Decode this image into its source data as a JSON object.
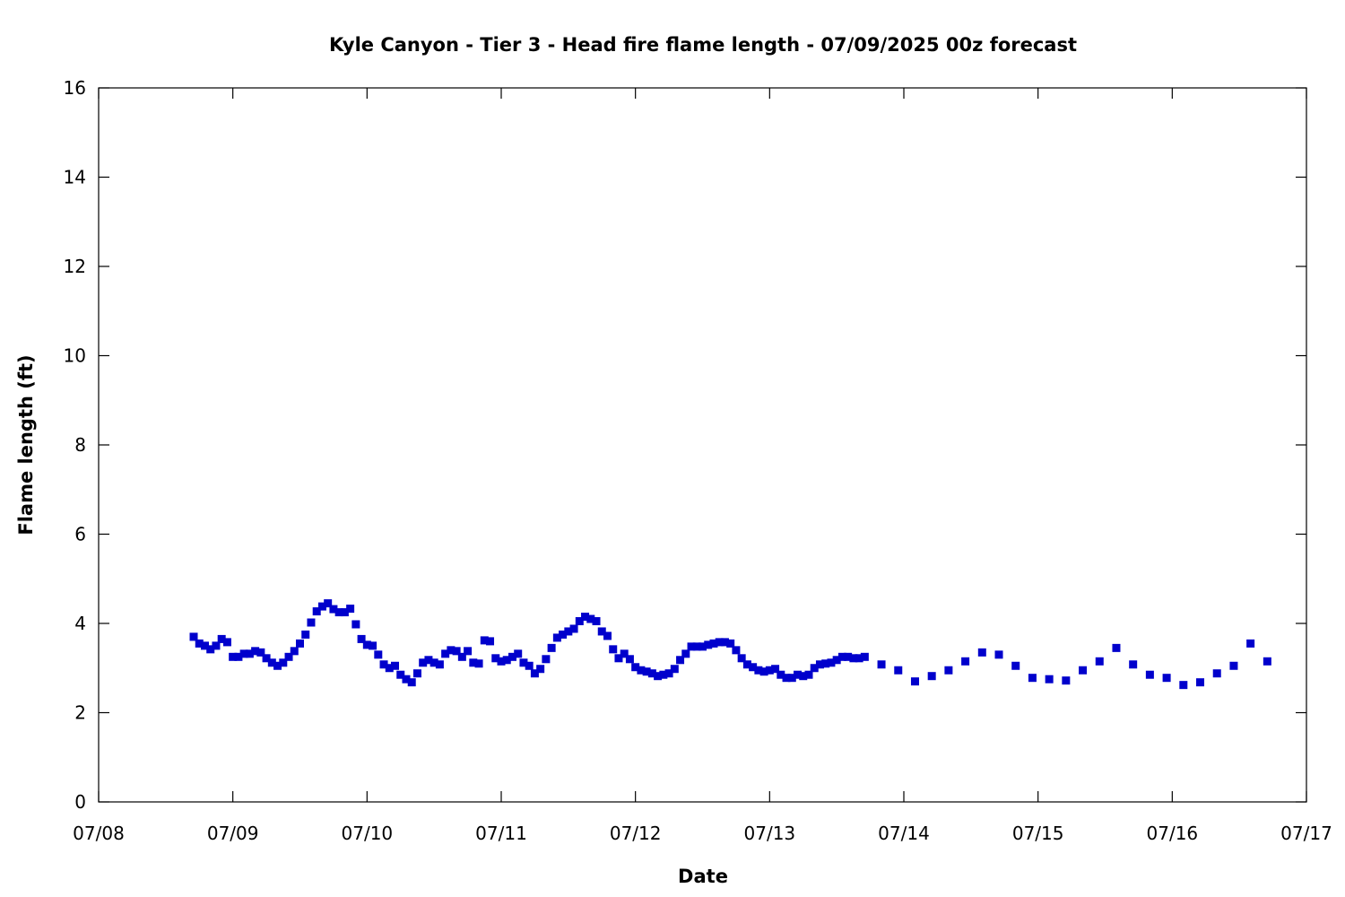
{
  "chart_data": {
    "type": "scatter",
    "title": "Kyle Canyon - Tier 3 - Head fire flame length - 07/09/2025 00z forecast",
    "xlabel": "Date",
    "ylabel": "Flame length (ft)",
    "x_tick_labels": [
      "07/08",
      "07/09",
      "07/10",
      "07/11",
      "07/12",
      "07/13",
      "07/14",
      "07/15",
      "07/16",
      "07/17"
    ],
    "y_tick_labels": [
      "0",
      "2",
      "4",
      "6",
      "8",
      "10",
      "12",
      "14",
      "16"
    ],
    "xlim": [
      "07/08",
      "07/17"
    ],
    "ylim": [
      0,
      16
    ],
    "grid": false,
    "marker_color": "#0000cc",
    "series": [
      {
        "x": [
          "07/08 17:00",
          "07/08 18:00",
          "07/08 19:00",
          "07/08 20:00",
          "07/08 21:00",
          "07/08 22:00",
          "07/08 23:00",
          "07/09 00:00",
          "07/09 01:00",
          "07/09 02:00",
          "07/09 03:00",
          "07/09 04:00",
          "07/09 05:00",
          "07/09 06:00",
          "07/09 07:00",
          "07/09 08:00",
          "07/09 09:00",
          "07/09 10:00",
          "07/09 11:00",
          "07/09 12:00",
          "07/09 13:00",
          "07/09 14:00",
          "07/09 15:00",
          "07/09 16:00",
          "07/09 17:00",
          "07/09 18:00",
          "07/09 19:00",
          "07/09 20:00",
          "07/09 21:00",
          "07/09 22:00",
          "07/09 23:00",
          "07/10 00:00",
          "07/10 01:00",
          "07/10 02:00",
          "07/10 03:00",
          "07/10 04:00",
          "07/10 05:00",
          "07/10 06:00",
          "07/10 07:00",
          "07/10 08:00",
          "07/10 09:00",
          "07/10 10:00",
          "07/10 11:00",
          "07/10 12:00",
          "07/10 13:00",
          "07/10 14:00",
          "07/10 15:00",
          "07/10 16:00",
          "07/10 17:00",
          "07/10 18:00",
          "07/10 19:00",
          "07/10 20:00",
          "07/10 21:00",
          "07/10 22:00",
          "07/10 23:00",
          "07/11 00:00",
          "07/11 01:00",
          "07/11 02:00",
          "07/11 03:00",
          "07/11 04:00",
          "07/11 05:00",
          "07/11 06:00",
          "07/11 07:00",
          "07/11 08:00",
          "07/11 09:00",
          "07/11 10:00",
          "07/11 11:00",
          "07/11 12:00",
          "07/11 13:00",
          "07/11 14:00",
          "07/11 15:00",
          "07/11 16:00",
          "07/11 17:00",
          "07/11 18:00",
          "07/11 19:00",
          "07/11 20:00",
          "07/11 21:00",
          "07/11 22:00",
          "07/11 23:00",
          "07/12 00:00",
          "07/12 01:00",
          "07/12 02:00",
          "07/12 03:00",
          "07/12 04:00",
          "07/12 05:00",
          "07/12 06:00",
          "07/12 07:00",
          "07/12 08:00",
          "07/12 09:00",
          "07/12 10:00",
          "07/12 11:00",
          "07/12 12:00",
          "07/12 13:00",
          "07/12 14:00",
          "07/12 15:00",
          "07/12 16:00",
          "07/12 17:00",
          "07/12 18:00",
          "07/12 19:00",
          "07/12 20:00",
          "07/12 21:00",
          "07/12 22:00",
          "07/12 23:00",
          "07/13 00:00",
          "07/13 01:00",
          "07/13 02:00",
          "07/13 03:00",
          "07/13 04:00",
          "07/13 05:00",
          "07/13 06:00",
          "07/13 07:00",
          "07/13 08:00",
          "07/13 09:00",
          "07/13 10:00",
          "07/13 11:00",
          "07/13 12:00",
          "07/13 13:00",
          "07/13 14:00",
          "07/13 15:00",
          "07/13 16:00",
          "07/13 17:00",
          "07/13 20:00",
          "07/13 23:00",
          "07/14 02:00",
          "07/14 05:00",
          "07/14 08:00",
          "07/14 11:00",
          "07/14 14:00",
          "07/14 17:00",
          "07/14 20:00",
          "07/14 23:00",
          "07/15 02:00",
          "07/15 05:00",
          "07/15 08:00",
          "07/15 11:00",
          "07/15 14:00",
          "07/15 17:00",
          "07/15 20:00",
          "07/15 23:00",
          "07/16 02:00",
          "07/16 05:00",
          "07/16 08:00",
          "07/16 11:00",
          "07/16 14:00",
          "07/16 17:00"
        ],
        "y": [
          3.7,
          3.55,
          3.5,
          3.42,
          3.5,
          3.65,
          3.58,
          3.25,
          3.25,
          3.32,
          3.32,
          3.38,
          3.35,
          3.22,
          3.12,
          3.05,
          3.12,
          3.25,
          3.38,
          3.55,
          3.75,
          4.02,
          4.27,
          4.38,
          4.45,
          4.32,
          4.25,
          4.25,
          4.33,
          3.98,
          3.65,
          3.52,
          3.5,
          3.3,
          3.08,
          3.0,
          3.05,
          2.85,
          2.75,
          2.68,
          2.88,
          3.12,
          3.18,
          3.12,
          3.08,
          3.32,
          3.4,
          3.38,
          3.25,
          3.38,
          3.12,
          3.1,
          3.62,
          3.6,
          3.22,
          3.15,
          3.18,
          3.25,
          3.32,
          3.12,
          3.05,
          2.88,
          2.98,
          3.2,
          3.45,
          3.68,
          3.75,
          3.82,
          3.88,
          4.05,
          4.15,
          4.1,
          4.05,
          3.82,
          3.72,
          3.42,
          3.22,
          3.32,
          3.2,
          3.02,
          2.95,
          2.92,
          2.88,
          2.82,
          2.85,
          2.88,
          2.98,
          3.18,
          3.32,
          3.48,
          3.48,
          3.48,
          3.52,
          3.55,
          3.58,
          3.58,
          3.55,
          3.4,
          3.22,
          3.08,
          3.02,
          2.95,
          2.92,
          2.95,
          2.98,
          2.85,
          2.78,
          2.78,
          2.85,
          2.82,
          2.85,
          3.0,
          3.08,
          3.1,
          3.12,
          3.18,
          3.25,
          3.25,
          3.22,
          3.22,
          3.25,
          3.08,
          2.95,
          2.7,
          2.82,
          2.95,
          3.15,
          3.35,
          3.3,
          3.05,
          2.78,
          2.75,
          2.72,
          2.95,
          3.15,
          3.45,
          3.08,
          2.85,
          2.78,
          2.62,
          2.68,
          2.88,
          3.05,
          3.55,
          3.15
        ]
      }
    ]
  }
}
